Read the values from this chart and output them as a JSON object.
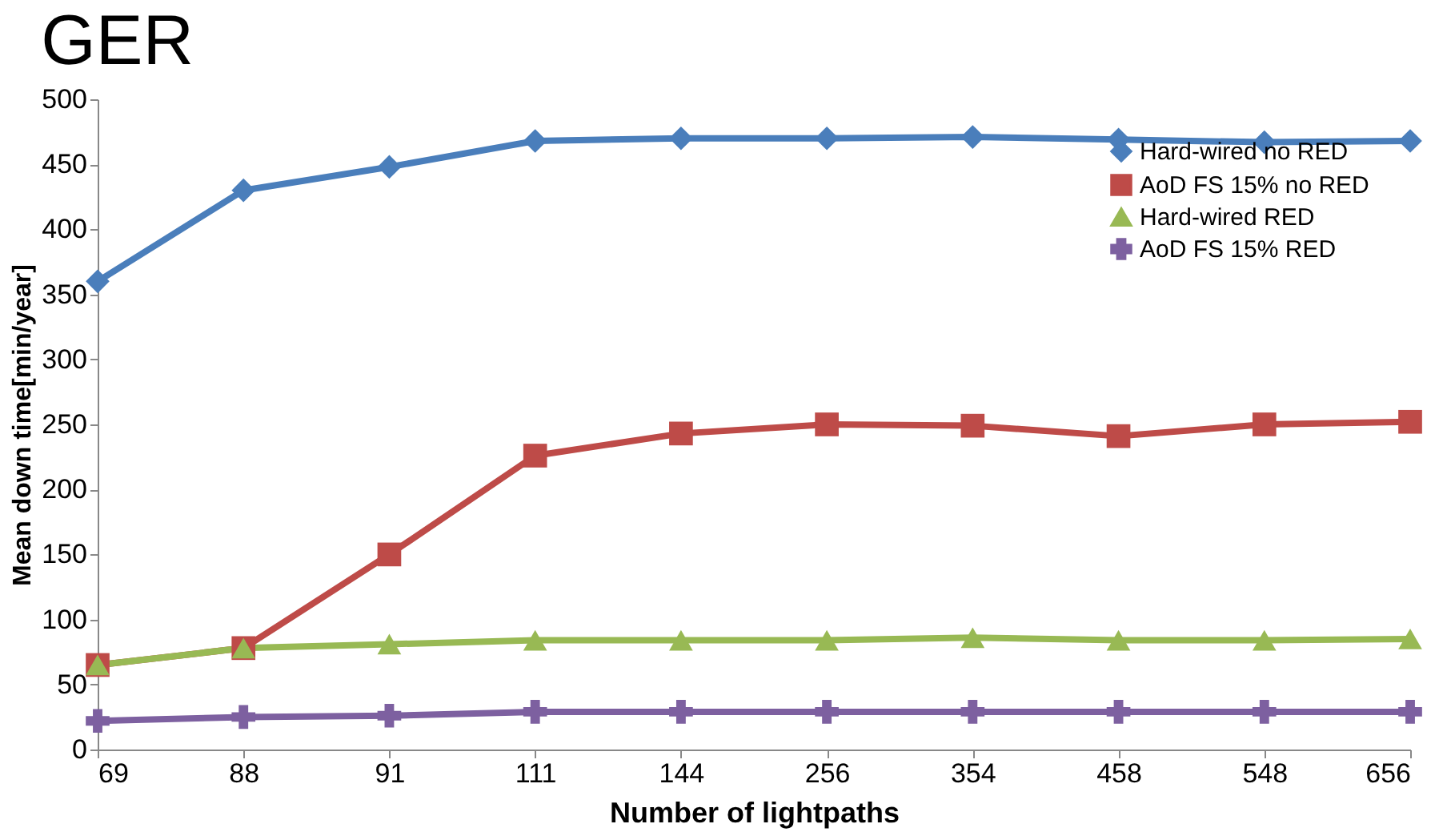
{
  "chart_data": {
    "type": "line",
    "title": "GER",
    "xlabel": "Number of lightpaths",
    "ylabel": "Mean down time[min/year]",
    "categories": [
      "69",
      "88",
      "91",
      "111",
      "144",
      "256",
      "354",
      "458",
      "548",
      "656"
    ],
    "series": [
      {
        "name": "Hard-wired no RED",
        "color": "#4a7ebb",
        "marker": "diamond",
        "values": [
          360,
          430,
          448,
          468,
          470,
          470,
          471,
          469,
          467,
          468
        ]
      },
      {
        "name": "AoD FS 15% no RED",
        "color": "#be4b48",
        "marker": "square",
        "values": [
          65,
          78,
          150,
          226,
          243,
          250,
          249,
          241,
          250,
          252
        ]
      },
      {
        "name": "Hard-wired RED",
        "color": "#98b954",
        "marker": "triangle",
        "values": [
          65,
          78,
          81,
          84,
          84,
          84,
          86,
          84,
          84,
          85
        ]
      },
      {
        "name": "AoD FS 15% RED",
        "color": "#7d60a0",
        "marker": "cross",
        "values": [
          22,
          25,
          26,
          29,
          29,
          29,
          29,
          29,
          29,
          29
        ]
      }
    ],
    "ylim": [
      0,
      500
    ],
    "yticks": [
      0,
      50,
      100,
      150,
      200,
      250,
      300,
      350,
      400,
      450,
      500
    ],
    "grid": false,
    "legend": "top right",
    "line_style": "solid"
  }
}
